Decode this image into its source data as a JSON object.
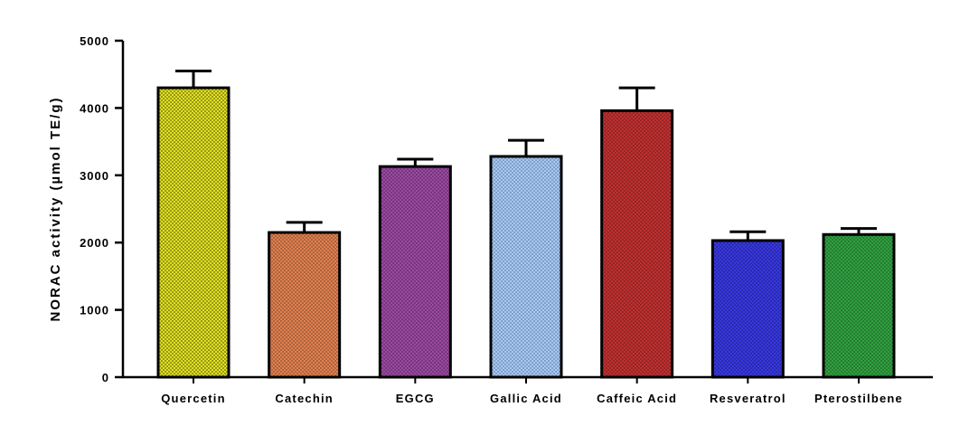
{
  "chart_data": {
    "type": "bar",
    "title": "",
    "xlabel": "",
    "ylabel": "NORAC activity (µmol TE/g)",
    "ylim": [
      0,
      5000
    ],
    "yticks": [
      0,
      1000,
      2000,
      3000,
      4000,
      5000
    ],
    "ytick_labels": [
      "0",
      "1000",
      "2000",
      "3000",
      "4000",
      "5000"
    ],
    "grid": false,
    "legend": "none",
    "categories": [
      "Quercetin",
      "Catechin",
      "EGCG",
      "Gallic Acid",
      "Caffeic Acid",
      "Resveratrol",
      "Pterostilbene"
    ],
    "values": [
      4300,
      2150,
      3130,
      3280,
      3960,
      2030,
      2120
    ],
    "error_upper": [
      250,
      150,
      110,
      240,
      340,
      130,
      90
    ],
    "colors": [
      "#e0e020",
      "#e08050",
      "#9a4aa0",
      "#a8c8f0",
      "#c03030",
      "#3838e0",
      "#30a040"
    ],
    "pattern_colors": [
      "#404010",
      "#704028",
      "#4a2050",
      "#5070a0",
      "#601818",
      "#181870",
      "#185020"
    ]
  }
}
